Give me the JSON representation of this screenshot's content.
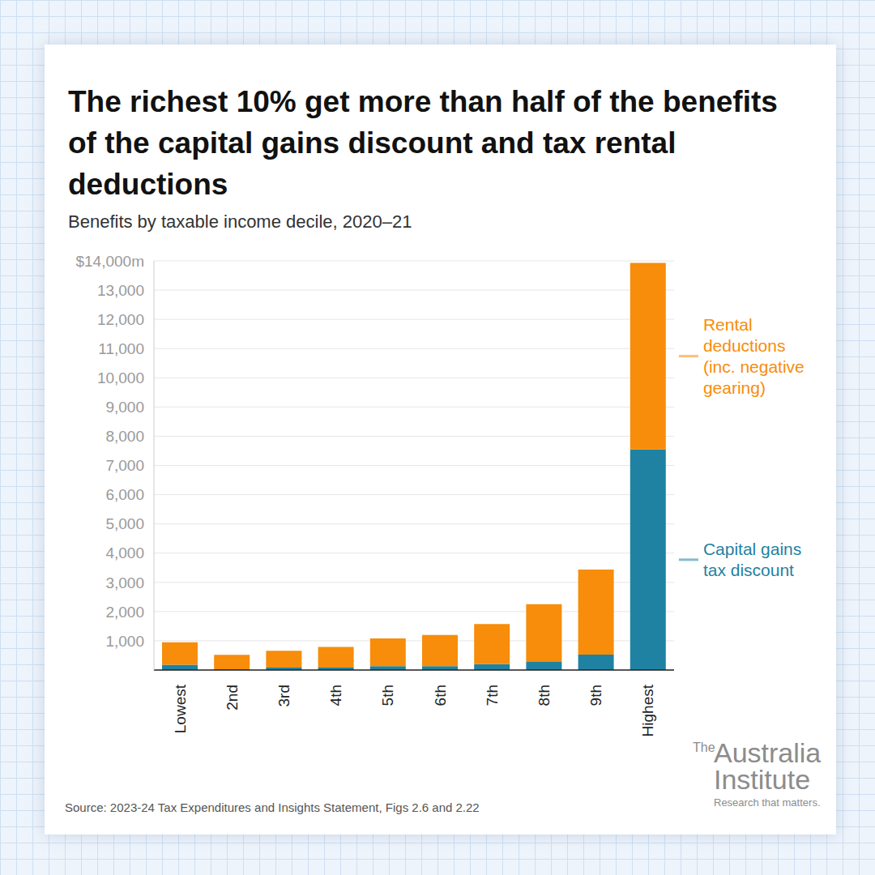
{
  "chart_data": {
    "type": "bar",
    "title": "The richest 10% get more than half of the benefits of the capital gains discount and tax rental deductions",
    "subtitle": "Benefits by taxable income decile, 2020–21",
    "categories": [
      "Lowest",
      "2nd",
      "3rd",
      "4th",
      "5th",
      "6th",
      "7th",
      "8th",
      "9th",
      "Highest"
    ],
    "series": [
      {
        "name": "Capital gains tax discount",
        "color": "#1f82a2",
        "values": [
          180,
          30,
          80,
          80,
          130,
          130,
          200,
          280,
          530,
          7550
        ]
      },
      {
        "name": "Rental deductions (inc. negative gearing)",
        "color": "#f78d0a",
        "values": [
          770,
          490,
          580,
          710,
          950,
          1070,
          1370,
          1970,
          2910,
          6380
        ]
      }
    ],
    "stacked": true,
    "ylim": [
      0,
      14000
    ],
    "yticks": [
      {
        "value": 1000,
        "label": "1,000"
      },
      {
        "value": 2000,
        "label": "2,000"
      },
      {
        "value": 3000,
        "label": "3,000"
      },
      {
        "value": 4000,
        "label": "4,000"
      },
      {
        "value": 5000,
        "label": "5,000"
      },
      {
        "value": 6000,
        "label": "6,000"
      },
      {
        "value": 7000,
        "label": "7,000"
      },
      {
        "value": 8000,
        "label": "8,000"
      },
      {
        "value": 9000,
        "label": "9,000"
      },
      {
        "value": 10000,
        "label": "10,000"
      },
      {
        "value": 11000,
        "label": "11,000"
      },
      {
        "value": 12000,
        "label": "12,000"
      },
      {
        "value": 13000,
        "label": "13,000"
      },
      {
        "value": 14000,
        "label": "$14,000m"
      }
    ],
    "grid": true,
    "source": "Source: 2023-24 Tax Expenditures and Insights Statement, Figs 2.6 and 2.22",
    "logo": {
      "prefix": "The",
      "name_line1": "Australia",
      "name_line2": "Institute",
      "tagline": "Research that matters."
    }
  }
}
